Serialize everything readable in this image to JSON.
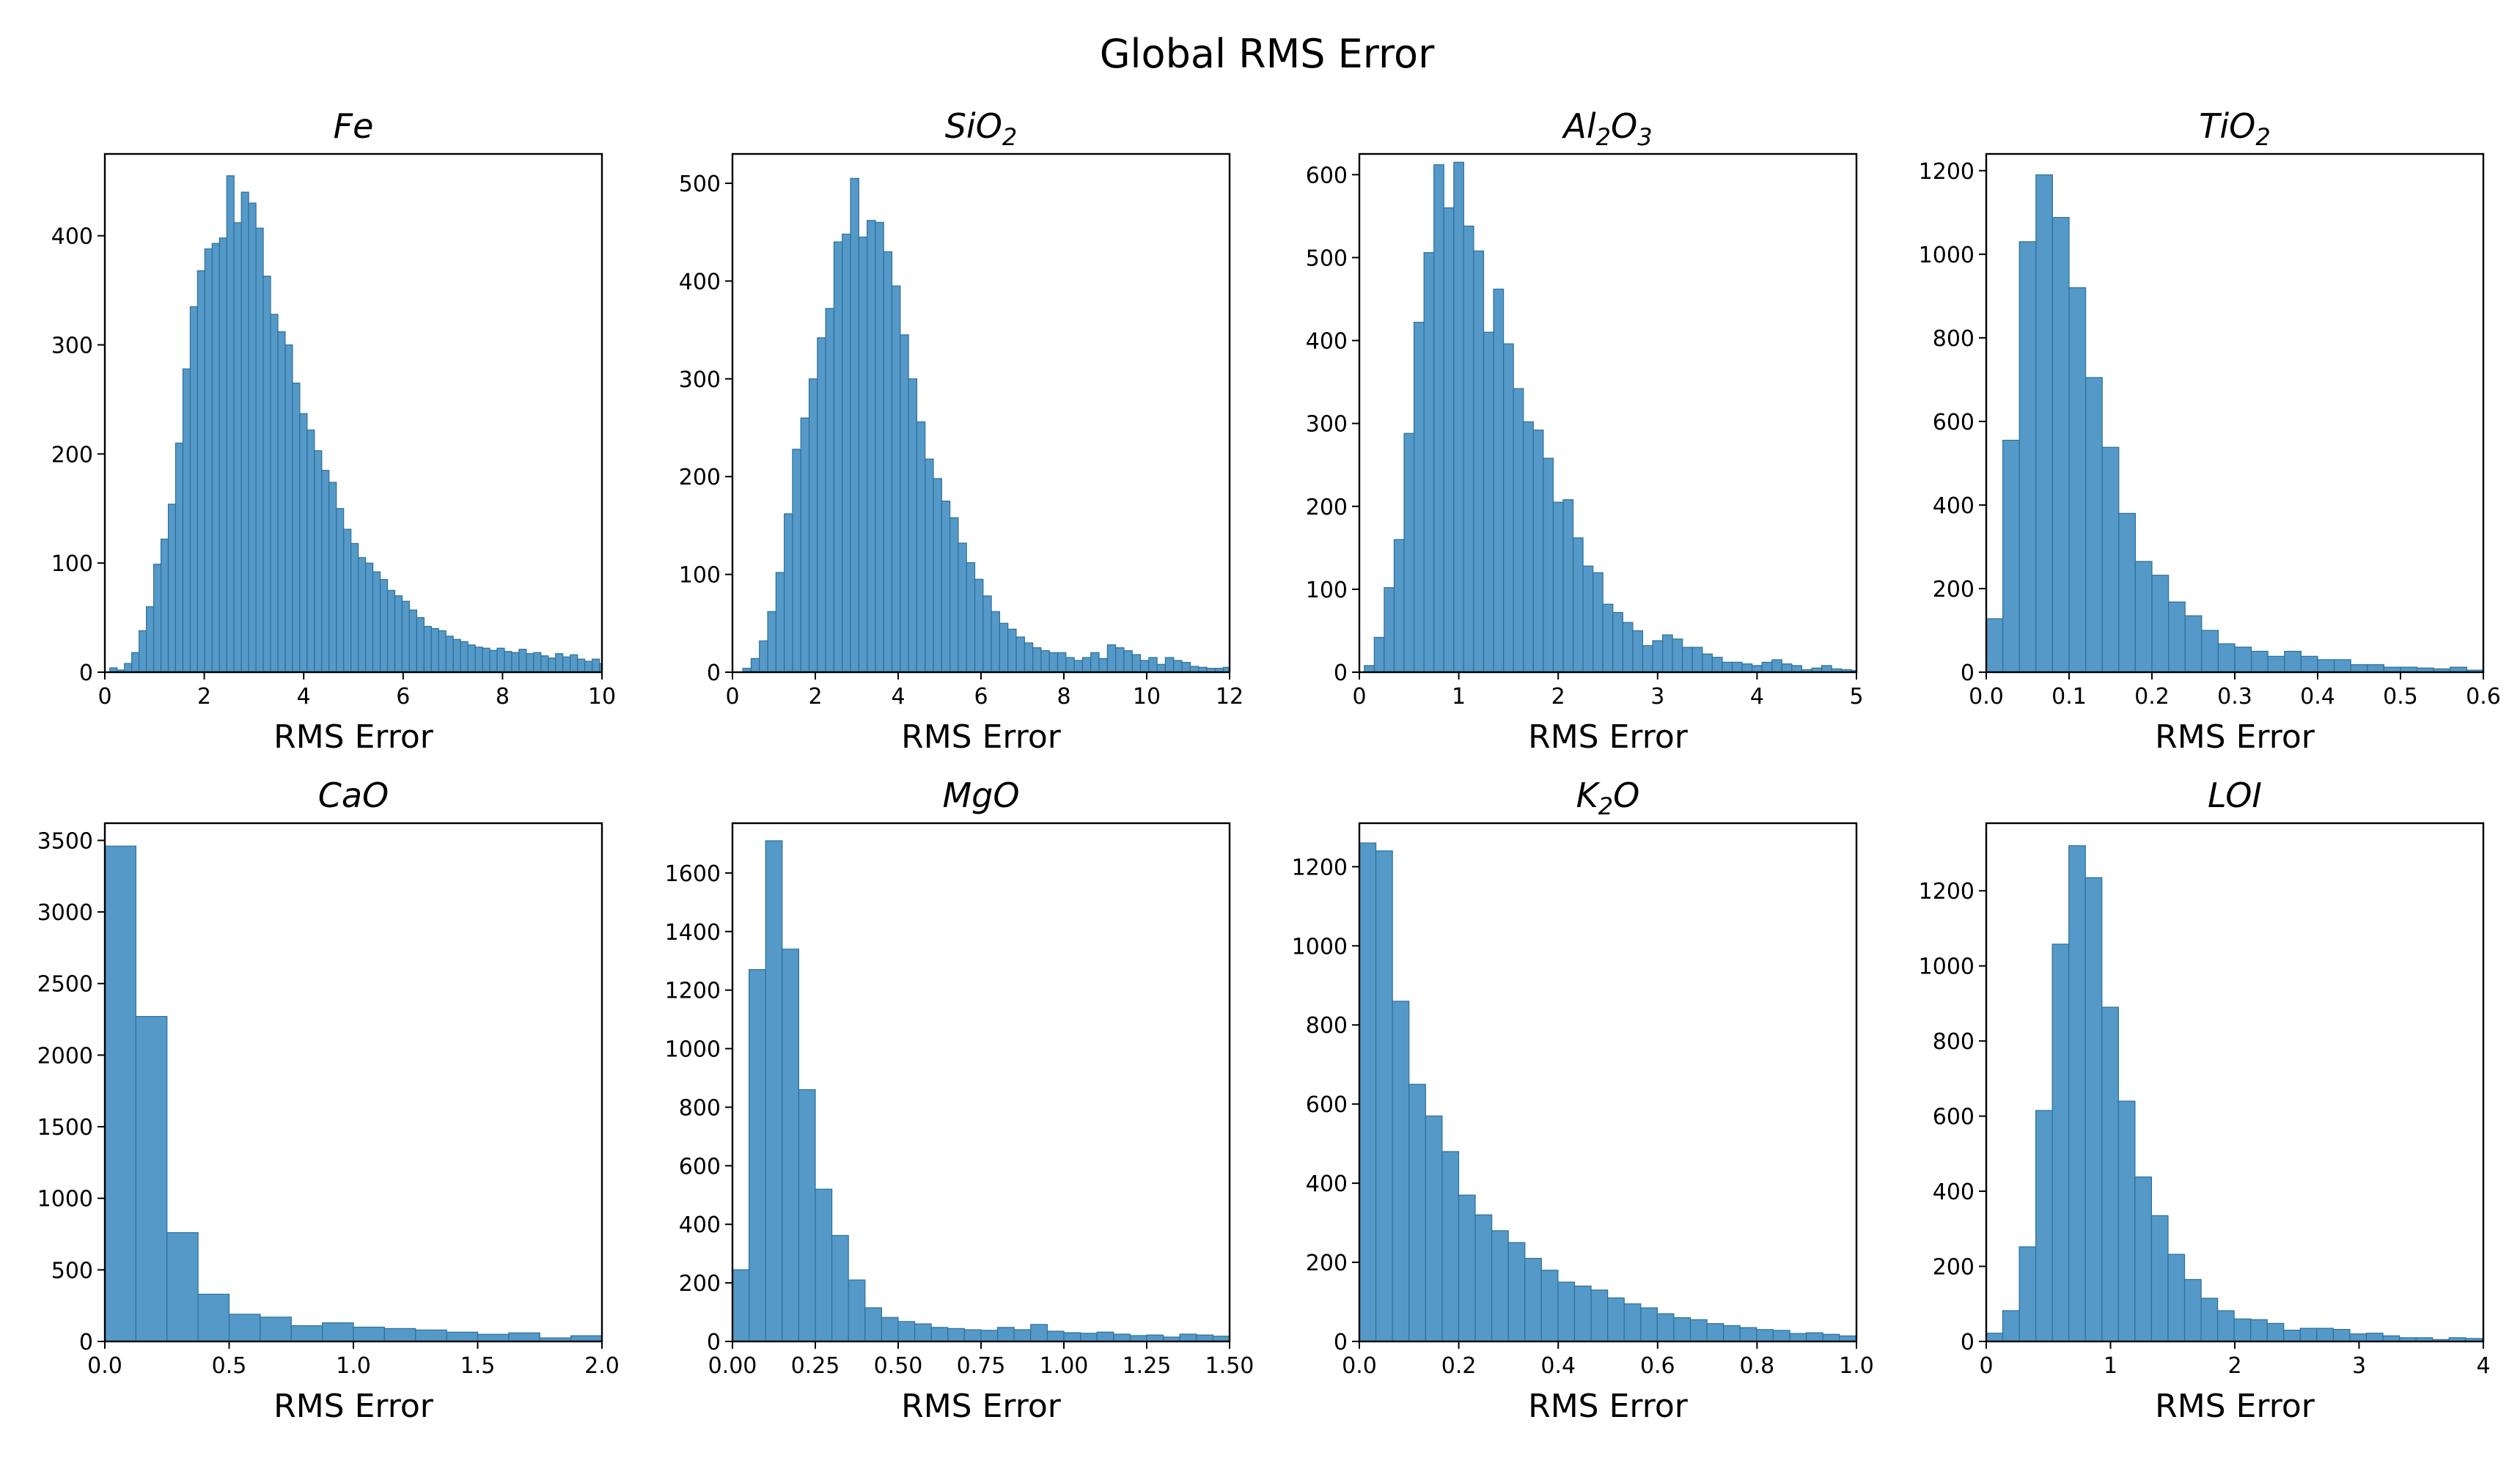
{
  "figure": {
    "title": "Global RMS Error"
  },
  "chart_data": [
    {
      "type": "bar",
      "title": "Fe",
      "xlabel": "RMS Error",
      "ylabel": "",
      "xlim": [
        0,
        10
      ],
      "ylim": [
        0,
        475
      ],
      "xticks": [
        0,
        2,
        4,
        6,
        8,
        10
      ],
      "xtick_labels": [
        "0",
        "2",
        "4",
        "6",
        "8",
        "10"
      ],
      "yticks": [
        0,
        100,
        200,
        300,
        400
      ],
      "ytick_labels": [
        "0",
        "100",
        "200",
        "300",
        "400"
      ],
      "bin_start": 0.1,
      "bin_width": 0.147,
      "values": [
        4,
        2,
        8,
        18,
        38,
        60,
        99,
        122,
        154,
        210,
        278,
        335,
        368,
        388,
        393,
        398,
        455,
        412,
        440,
        430,
        407,
        363,
        328,
        312,
        300,
        265,
        237,
        222,
        203,
        185,
        174,
        150,
        131,
        118,
        105,
        100,
        92,
        85,
        75,
        70,
        65,
        57,
        50,
        42,
        40,
        38,
        33,
        30,
        28,
        25,
        23,
        22,
        20,
        22,
        19,
        18,
        21,
        17,
        18,
        15,
        13,
        17,
        14,
        16,
        12,
        10,
        12,
        8,
        14,
        11,
        10,
        9,
        7,
        10,
        8,
        9,
        7,
        6,
        8,
        7,
        9,
        6,
        7,
        8,
        6,
        5,
        7,
        6,
        7,
        5
      ]
    },
    {
      "type": "bar",
      "title": "SiO2",
      "title_main": "SiO",
      "title_sub": "2",
      "xlabel": "RMS Error",
      "ylabel": "",
      "xlim": [
        0,
        12
      ],
      "ylim": [
        0,
        530
      ],
      "xticks": [
        0,
        2,
        4,
        6,
        8,
        10,
        12
      ],
      "xtick_labels": [
        "0",
        "2",
        "4",
        "6",
        "8",
        "10",
        "12"
      ],
      "yticks": [
        0,
        100,
        200,
        300,
        400,
        500
      ],
      "ytick_labels": [
        "0",
        "100",
        "200",
        "300",
        "400",
        "500"
      ],
      "bin_start": 0.25,
      "bin_width": 0.2,
      "values": [
        4,
        14,
        32,
        62,
        102,
        162,
        228,
        260,
        300,
        342,
        372,
        440,
        448,
        505,
        445,
        462,
        460,
        430,
        395,
        345,
        300,
        256,
        218,
        198,
        175,
        158,
        132,
        112,
        95,
        78,
        62,
        50,
        44,
        36,
        30,
        25,
        22,
        20,
        20,
        15,
        12,
        15,
        20,
        14,
        28,
        25,
        22,
        18,
        12,
        15,
        8,
        15,
        12,
        10,
        6,
        5,
        4,
        4,
        5,
        5,
        6
      ]
    },
    {
      "type": "bar",
      "title": "Al2O3",
      "title_main": "Al",
      "title_sub": "2",
      "title_main2": "O",
      "title_sub2": "3",
      "xlabel": "RMS Error",
      "ylabel": "",
      "xlim": [
        0,
        5
      ],
      "ylim": [
        0,
        625
      ],
      "xticks": [
        0,
        1,
        2,
        3,
        4,
        5
      ],
      "xtick_labels": [
        "0",
        "1",
        "2",
        "3",
        "4",
        "5"
      ],
      "yticks": [
        0,
        100,
        200,
        300,
        400,
        500,
        600
      ],
      "ytick_labels": [
        "0",
        "100",
        "200",
        "300",
        "400",
        "500",
        "600"
      ],
      "bin_start": 0.05,
      "bin_width": 0.1,
      "values": [
        8,
        42,
        102,
        160,
        288,
        422,
        506,
        612,
        560,
        615,
        538,
        508,
        410,
        462,
        396,
        342,
        302,
        292,
        258,
        205,
        208,
        162,
        128,
        120,
        82,
        72,
        60,
        50,
        32,
        38,
        45,
        40,
        30,
        30,
        22,
        18,
        12,
        12,
        10,
        8,
        12,
        15,
        10,
        8,
        3,
        5,
        8,
        4,
        3,
        2
      ]
    },
    {
      "type": "bar",
      "title": "TiO2",
      "title_main": "TiO",
      "title_sub": "2",
      "xlabel": "RMS Error",
      "ylabel": "",
      "xlim": [
        0,
        0.6
      ],
      "ylim": [
        0,
        1240
      ],
      "xticks": [
        0,
        0.1,
        0.2,
        0.3,
        0.4,
        0.5,
        0.6
      ],
      "xtick_labels": [
        "0.0",
        "0.1",
        "0.2",
        "0.3",
        "0.4",
        "0.5",
        "0.6"
      ],
      "yticks": [
        0,
        200,
        400,
        600,
        800,
        1000,
        1200
      ],
      "ytick_labels": [
        "0",
        "200",
        "400",
        "600",
        "800",
        "1000",
        "1200"
      ],
      "bin_start": 0.0,
      "bin_width": 0.02,
      "values": [
        128,
        555,
        1030,
        1190,
        1088,
        920,
        705,
        538,
        380,
        265,
        232,
        168,
        135,
        100,
        68,
        60,
        50,
        38,
        50,
        38,
        30,
        30,
        18,
        18,
        12,
        12,
        10,
        8,
        12,
        5
      ]
    },
    {
      "type": "bar",
      "title": "CaO",
      "xlabel": "RMS Error",
      "ylabel": "",
      "xlim": [
        0,
        2.0
      ],
      "ylim": [
        0,
        3620
      ],
      "xticks": [
        0,
        0.5,
        1.0,
        1.5,
        2.0
      ],
      "xtick_labels": [
        "0.0",
        "0.5",
        "1.0",
        "1.5",
        "2.0"
      ],
      "yticks": [
        0,
        500,
        1000,
        1500,
        2000,
        2500,
        3000,
        3500
      ],
      "ytick_labels": [
        "0",
        "500",
        "1000",
        "1500",
        "2000",
        "2500",
        "3000",
        "3500"
      ],
      "bin_start": 0.0,
      "bin_width": 0.125,
      "values": [
        3460,
        2270,
        760,
        330,
        190,
        170,
        110,
        130,
        100,
        90,
        80,
        65,
        50,
        60,
        25,
        40
      ]
    },
    {
      "type": "bar",
      "title": "MgO",
      "xlabel": "RMS Error",
      "ylabel": "",
      "xlim": [
        0,
        1.5
      ],
      "ylim": [
        0,
        1770
      ],
      "xticks": [
        0,
        0.25,
        0.5,
        0.75,
        1.0,
        1.25,
        1.5
      ],
      "xtick_labels": [
        "0.00",
        "0.25",
        "0.50",
        "0.75",
        "1.00",
        "1.25",
        "1.50"
      ],
      "yticks": [
        0,
        200,
        400,
        600,
        800,
        1000,
        1200,
        1400,
        1600
      ],
      "ytick_labels": [
        "0",
        "200",
        "400",
        "600",
        "800",
        "1000",
        "1200",
        "1400",
        "1600"
      ],
      "bin_start": 0.0,
      "bin_width": 0.05,
      "values": [
        245,
        1270,
        1710,
        1340,
        860,
        520,
        362,
        210,
        115,
        82,
        68,
        60,
        48,
        44,
        40,
        38,
        48,
        40,
        58,
        35,
        30,
        28,
        32,
        25,
        20,
        22,
        15,
        25,
        22,
        18
      ]
    },
    {
      "type": "bar",
      "title": "K2O",
      "title_main": "K",
      "title_sub": "2",
      "title_main2": "O",
      "xlabel": "RMS Error",
      "ylabel": "",
      "xlim": [
        0,
        1.0
      ],
      "ylim": [
        0,
        1310
      ],
      "xticks": [
        0,
        0.2,
        0.4,
        0.6,
        0.8,
        1.0
      ],
      "xtick_labels": [
        "0.0",
        "0.2",
        "0.4",
        "0.6",
        "0.8",
        "1.0"
      ],
      "yticks": [
        0,
        200,
        400,
        600,
        800,
        1000,
        1200
      ],
      "ytick_labels": [
        "0",
        "200",
        "400",
        "600",
        "800",
        "1000",
        "1200"
      ],
      "bin_start": 0.0,
      "bin_width": 0.0333,
      "values": [
        1260,
        1240,
        860,
        650,
        570,
        480,
        370,
        320,
        280,
        250,
        210,
        180,
        150,
        140,
        130,
        110,
        95,
        85,
        70,
        60,
        55,
        45,
        40,
        35,
        30,
        28,
        20,
        22,
        18,
        14
      ]
    },
    {
      "type": "bar",
      "title": "LOI",
      "xlabel": "RMS Error",
      "ylabel": "",
      "xlim": [
        0,
        4
      ],
      "ylim": [
        0,
        1380
      ],
      "xticks": [
        0,
        1,
        2,
        3,
        4
      ],
      "xtick_labels": [
        "0",
        "1",
        "2",
        "3",
        "4"
      ],
      "yticks": [
        0,
        200,
        400,
        600,
        800,
        1000,
        1200
      ],
      "ytick_labels": [
        "0",
        "200",
        "400",
        "600",
        "800",
        "1000",
        "1200"
      ],
      "bin_start": 0.0,
      "bin_width": 0.133,
      "values": [
        22,
        82,
        252,
        615,
        1058,
        1320,
        1235,
        890,
        640,
        438,
        335,
        232,
        165,
        115,
        82,
        60,
        58,
        48,
        30,
        35,
        35,
        32,
        20,
        22,
        15,
        10,
        10,
        5,
        10,
        8
      ]
    }
  ]
}
